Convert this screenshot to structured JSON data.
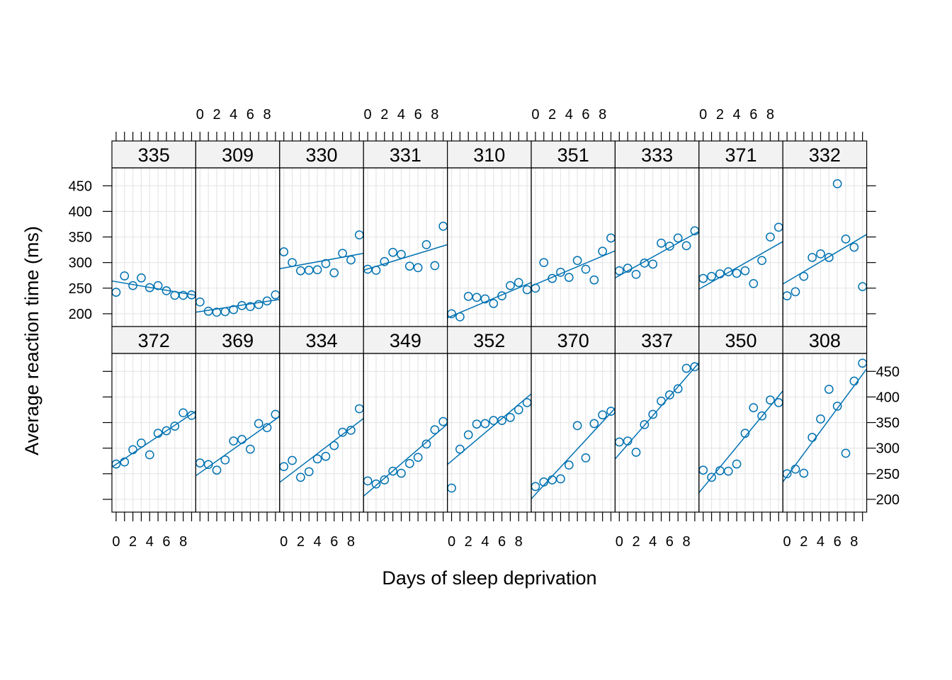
{
  "chart_data": {
    "type": "scatter",
    "title": "",
    "xlabel": "Days of sleep deprivation",
    "ylabel": "Average reaction time (ms)",
    "xlim": [
      -0.5,
      9.5
    ],
    "ylim": [
      175,
      485
    ],
    "x_ticks": [
      0,
      2,
      4,
      6,
      8
    ],
    "x_tick_labels": [
      "0",
      "2",
      "4",
      "6",
      "8"
    ],
    "y_ticks": [
      200,
      250,
      300,
      350,
      400,
      450
    ],
    "y_tick_labels": [
      "200",
      "250",
      "300",
      "350",
      "400",
      "450"
    ],
    "grid": true,
    "color": "#0072b2",
    "layout": {
      "columns": 9,
      "rows": 2
    },
    "days": [
      0,
      1,
      2,
      3,
      4,
      5,
      6,
      7,
      8,
      9
    ],
    "panels": [
      {
        "subject": "335",
        "row": "top",
        "values": [
          242,
          274,
          255,
          270,
          251,
          255,
          245,
          236,
          236,
          237
        ],
        "fit": [
          264,
          236
        ]
      },
      {
        "subject": "309",
        "row": "top",
        "values": [
          223,
          205,
          203,
          204,
          208,
          216,
          214,
          218,
          225,
          237
        ],
        "fit": [
          203,
          228
        ]
      },
      {
        "subject": "330",
        "row": "top",
        "values": [
          321,
          300,
          284,
          285,
          286,
          298,
          280,
          318,
          305,
          354
        ],
        "fit": [
          288,
          318
        ]
      },
      {
        "subject": "331",
        "row": "top",
        "values": [
          287,
          285,
          302,
          320,
          316,
          293,
          290,
          335,
          294,
          371
        ],
        "fit": [
          285,
          335
        ]
      },
      {
        "subject": "310",
        "row": "top",
        "values": [
          200,
          194,
          234,
          232,
          229,
          220,
          235,
          255,
          261,
          247
        ],
        "fit": [
          192,
          261
        ]
      },
      {
        "subject": "351",
        "row": "top",
        "values": [
          250,
          300,
          269,
          281,
          271,
          304,
          287,
          266,
          322,
          348
        ],
        "fit": [
          254,
          323
        ]
      },
      {
        "subject": "333",
        "row": "top",
        "values": [
          284,
          289,
          277,
          299,
          297,
          338,
          332,
          348,
          333,
          362
        ],
        "fit": [
          270,
          361
        ]
      },
      {
        "subject": "371",
        "row": "top",
        "values": [
          269,
          273,
          278,
          282,
          279,
          284,
          259,
          304,
          350,
          369
        ],
        "fit": [
          248,
          341
        ]
      },
      {
        "subject": "332",
        "row": "top",
        "values": [
          235,
          243,
          273,
          310,
          317,
          310,
          454,
          346,
          330,
          253
        ],
        "fit": [
          258,
          355
        ]
      },
      {
        "subject": "372",
        "row": "bottom",
        "values": [
          269,
          273,
          297,
          310,
          287,
          329,
          334,
          343,
          369,
          364
        ],
        "fit": [
          263,
          372
        ]
      },
      {
        "subject": "369",
        "row": "bottom",
        "values": [
          271,
          268,
          257,
          277,
          314,
          317,
          298,
          348,
          340,
          366
        ],
        "fit": [
          246,
          362
        ]
      },
      {
        "subject": "334",
        "row": "bottom",
        "values": [
          264,
          276,
          243,
          254,
          279,
          284,
          305,
          331,
          335,
          377
        ],
        "fit": [
          233,
          358
        ]
      },
      {
        "subject": "349",
        "row": "bottom",
        "values": [
          236,
          230,
          238,
          255,
          251,
          270,
          282,
          308,
          336,
          352
        ],
        "fit": [
          206,
          347
        ]
      },
      {
        "subject": "352",
        "row": "bottom",
        "values": [
          222,
          298,
          326,
          347,
          348,
          354,
          354,
          360,
          375,
          389
        ],
        "fit": [
          268,
          406
        ]
      },
      {
        "subject": "370",
        "row": "bottom",
        "values": [
          225,
          234,
          238,
          240,
          267,
          344,
          281,
          348,
          365,
          372
        ],
        "fit": [
          201,
          378
        ]
      },
      {
        "subject": "337",
        "row": "bottom",
        "values": [
          312,
          314,
          292,
          346,
          366,
          392,
          404,
          416,
          456,
          459
        ],
        "fit": [
          279,
          467
        ]
      },
      {
        "subject": "350",
        "row": "bottom",
        "values": [
          257,
          243,
          256,
          255,
          269,
          329,
          379,
          363,
          394,
          389
        ],
        "fit": [
          213,
          412
        ]
      },
      {
        "subject": "308",
        "row": "bottom",
        "values": [
          250,
          259,
          251,
          321,
          357,
          415,
          382,
          290,
          431,
          466
        ],
        "fit": [
          234,
          455
        ]
      }
    ]
  }
}
